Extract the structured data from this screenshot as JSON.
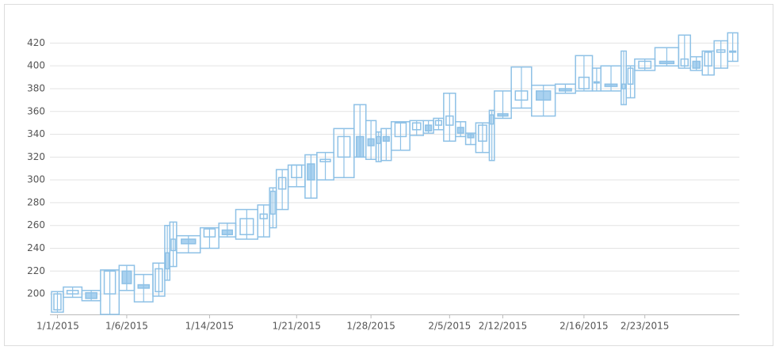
{
  "chart_data": {
    "type": "candlevolume",
    "color": "#8ec1e6",
    "fill_down": "#a9d1ef",
    "categories": [
      "1/1/2015",
      null,
      null,
      null,
      "1/6/2015",
      null,
      null,
      null,
      null,
      null,
      "1/14/2015",
      null,
      null,
      null,
      null,
      null,
      "1/21/2015",
      null,
      null,
      null,
      null,
      "1/28/2015",
      null,
      null,
      null,
      null,
      null,
      null,
      "2/5/2015",
      null,
      null,
      null,
      null,
      "2/12/2015",
      null,
      null,
      null,
      "2/16/2015",
      null,
      null,
      null,
      null,
      "2/23/2015",
      null,
      null,
      null,
      null,
      null,
      null
    ],
    "open": [
      186,
      200,
      201,
      200,
      220,
      208,
      202,
      222,
      238,
      248,
      250,
      256,
      252,
      266,
      270,
      292,
      302,
      314,
      316,
      320,
      338,
      336,
      332,
      338,
      338,
      344,
      348,
      348,
      348,
      346,
      340,
      334,
      349,
      358,
      370,
      378,
      380,
      380,
      386,
      384,
      380,
      384,
      398,
      404,
      400,
      404,
      400,
      412,
      412
    ],
    "high": [
      202,
      206,
      203,
      221,
      225,
      217,
      227,
      260,
      263,
      251,
      258,
      262,
      274,
      278,
      293,
      309,
      313,
      322,
      324,
      345,
      366,
      352,
      342,
      345,
      351,
      352,
      352,
      354,
      376,
      351,
      341,
      350,
      361,
      378,
      399,
      383,
      384,
      409,
      398,
      400,
      413,
      400,
      406,
      416,
      427,
      408,
      413,
      422,
      429
    ],
    "low": [
      184,
      197,
      194,
      182,
      203,
      193,
      198,
      212,
      224,
      236,
      240,
      250,
      248,
      250,
      258,
      274,
      294,
      284,
      300,
      302,
      320,
      318,
      316,
      317,
      326,
      339,
      341,
      344,
      334,
      338,
      331,
      324,
      317,
      354,
      363,
      356,
      376,
      378,
      378,
      378,
      366,
      372,
      396,
      400,
      398,
      396,
      392,
      398,
      404
    ],
    "close": [
      200,
      203,
      196,
      220,
      209,
      205,
      222,
      236,
      248,
      244,
      257,
      252,
      266,
      270,
      290,
      302,
      313,
      300,
      318,
      338,
      320,
      330,
      338,
      334,
      350,
      350,
      343,
      352,
      356,
      341,
      337,
      348,
      357,
      356,
      378,
      370,
      378,
      390,
      385,
      382,
      384,
      398,
      404,
      402,
      406,
      398,
      412,
      414,
      413
    ],
    "volume": [
      14,
      22,
      22,
      22,
      18,
      22,
      14,
      6,
      8,
      28,
      22,
      20,
      26,
      14,
      8,
      14,
      20,
      14,
      20,
      24,
      14,
      12,
      6,
      12,
      22,
      16,
      12,
      12,
      14,
      12,
      12,
      16,
      6,
      20,
      24,
      28,
      24,
      20,
      10,
      24,
      6,
      10,
      24,
      28,
      14,
      14,
      14,
      16,
      12
    ],
    "ylim": [
      182,
      430
    ],
    "yticks": [
      200,
      220,
      240,
      260,
      280,
      300,
      320,
      340,
      360,
      380,
      400,
      420
    ],
    "grid": true
  }
}
